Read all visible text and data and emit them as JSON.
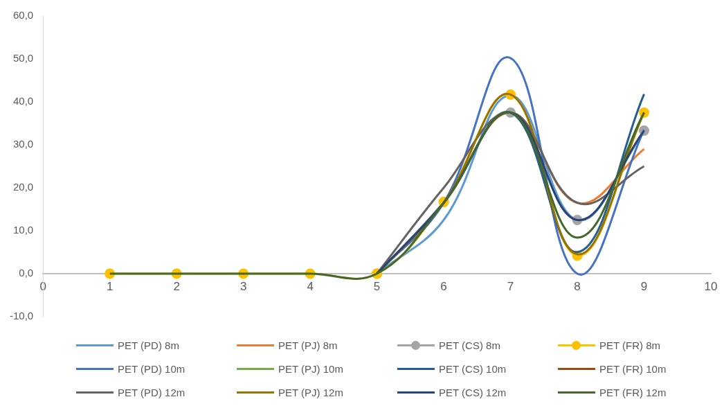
{
  "chart_data": {
    "type": "line",
    "x": [
      1,
      2,
      3,
      4,
      5,
      6,
      7,
      8,
      9
    ],
    "series": [
      {
        "name": "PET (PD) 8m",
        "color": "#5b9bd5",
        "marker": "none",
        "values": [
          null,
          null,
          null,
          null,
          0,
          12.5,
          41.5,
          12.5,
          33
        ]
      },
      {
        "name": "PET (PJ) 8m",
        "color": "#ed7d31",
        "marker": "none",
        "values": [
          null,
          null,
          null,
          null,
          0,
          16.5,
          37.5,
          16.5,
          29
        ]
      },
      {
        "name": "PET (CS) 8m",
        "color": "#a5a5a5",
        "marker": "circle",
        "values": [
          null,
          null,
          null,
          null,
          0,
          16.7,
          37.5,
          12.5,
          33.3
        ]
      },
      {
        "name": "PET (FR) 8m",
        "color": "#ffc000",
        "marker": "circle",
        "values": [
          0,
          0,
          0,
          0,
          0,
          16.7,
          41.7,
          4.2,
          37.5
        ]
      },
      {
        "name": "PET (PD) 10m",
        "color": "#4472c4",
        "marker": "none",
        "values": [
          null,
          null,
          null,
          null,
          0,
          16.5,
          50.2,
          0,
          33.5
        ]
      },
      {
        "name": "PET (PJ) 10m",
        "color": "#70ad47",
        "marker": "none",
        "values": [
          null,
          null,
          null,
          null,
          null,
          null,
          null,
          null,
          null
        ]
      },
      {
        "name": "PET (CS) 10m",
        "color": "#255e91",
        "marker": "none",
        "values": [
          null,
          null,
          null,
          null,
          0,
          16.5,
          37.5,
          5,
          41.8
        ]
      },
      {
        "name": "PET (FR) 10m",
        "color": "#9e480e",
        "marker": "none",
        "values": [
          null,
          null,
          null,
          null,
          null,
          null,
          null,
          null,
          null
        ]
      },
      {
        "name": "PET (PD) 12m",
        "color": "#636363",
        "marker": "none",
        "values": [
          null,
          null,
          null,
          null,
          0,
          20,
          37.5,
          16.5,
          25
        ]
      },
      {
        "name": "PET (PJ) 12m",
        "color": "#997300",
        "marker": "none",
        "values": [
          null,
          null,
          null,
          null,
          0,
          16.5,
          41.7,
          4.5,
          37.5
        ]
      },
      {
        "name": "PET (CS) 12m",
        "color": "#264478",
        "marker": "none",
        "values": [
          null,
          null,
          null,
          null,
          0,
          16.5,
          37.5,
          12.5,
          33.3
        ]
      },
      {
        "name": "PET (FR) 12m",
        "color": "#43682b",
        "marker": "none",
        "values": [
          0,
          0,
          0,
          0,
          0,
          16.5,
          37.5,
          8.4,
          37.5
        ]
      }
    ],
    "xlim": [
      0,
      10
    ],
    "xticks": [
      0,
      1,
      2,
      3,
      4,
      5,
      6,
      7,
      8,
      9,
      10
    ],
    "ylim": [
      -10,
      60
    ],
    "yticks": [
      {
        "value": -10,
        "label": "-10,0"
      },
      {
        "value": 0,
        "label": "0,0"
      },
      {
        "value": 10,
        "label": "10,0"
      },
      {
        "value": 20,
        "label": "20,0"
      },
      {
        "value": 30,
        "label": "30,0"
      },
      {
        "value": 40,
        "label": "40,0"
      },
      {
        "value": 50,
        "label": "50,0"
      },
      {
        "value": 60,
        "label": "60,0"
      }
    ],
    "grid": false,
    "legend": "bottom"
  }
}
